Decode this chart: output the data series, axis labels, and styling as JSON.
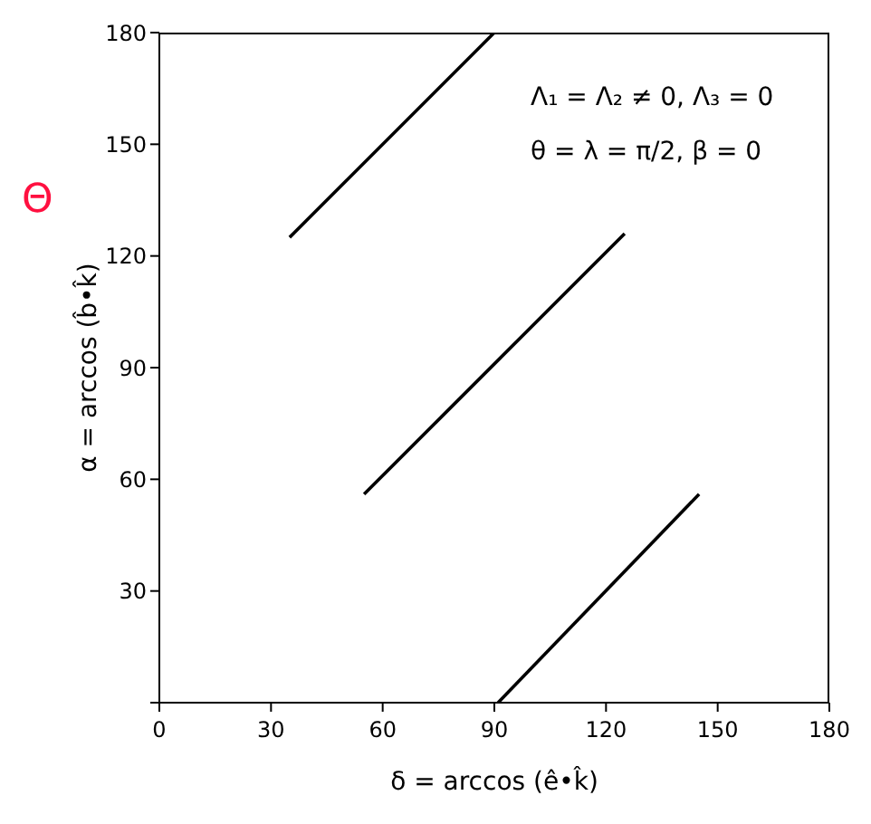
{
  "chart_data": {
    "type": "line",
    "xlabel": "δ = arccos (ê•k̂)",
    "ylabel": "α = arccos (b̂•k̂)",
    "annotations": [
      "Λ₁ = Λ₂ ≠ 0,   Λ₃ = 0",
      "θ = λ = π/2,   β = 0",
      "Θ"
    ],
    "series": [
      {
        "color": "#000000",
        "x": [
          35,
          90
        ],
        "values": [
          125,
          180
        ]
      },
      {
        "color": "#000000",
        "x": [
          55,
          125
        ],
        "values": [
          56,
          126
        ]
      },
      {
        "color": "#000000",
        "x": [
          91,
          145
        ],
        "values": [
          0,
          56
        ]
      }
    ],
    "xlim": [
      0,
      180
    ],
    "xticks": [
      0,
      30,
      60,
      90,
      120,
      150,
      180
    ],
    "ylim": [
      0,
      180
    ],
    "yticks": [
      {
        "value": 0,
        "label": null
      },
      30,
      60,
      90,
      120,
      150,
      180
    ],
    "marker": "none",
    "line_style": "solid",
    "grid": false
  }
}
